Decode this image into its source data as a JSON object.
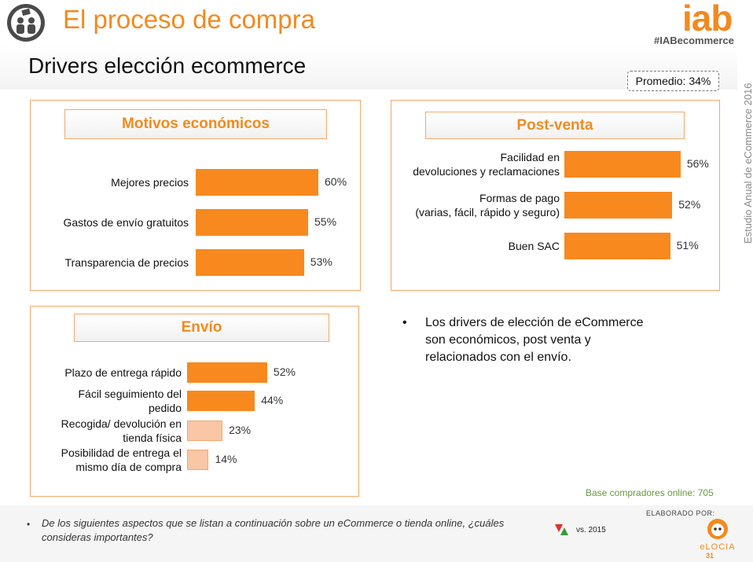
{
  "header": {
    "title": "El proceso de compra",
    "logo_text": "iab",
    "hashtag": "#IABecommerce",
    "brand_color": "#F28A1E"
  },
  "subtitle": "Drivers elección ecommerce",
  "promedio": "Promedio: 34%",
  "side_label": "Estudio Anual de eCommerce 2016",
  "chart_data": [
    {
      "type": "bar",
      "orientation": "horizontal",
      "title": "Motivos económicos",
      "categories": [
        "Mejores precios",
        "Gastos de envío gratuitos",
        "Transparencia de precios"
      ],
      "values": [
        60,
        55,
        53
      ],
      "value_labels": [
        "60%",
        "55%",
        "53%"
      ],
      "highlight": [
        true,
        true,
        true
      ],
      "color": "#F7891F"
    },
    {
      "type": "bar",
      "orientation": "horizontal",
      "title": "Post-venta",
      "categories": [
        "Facilidad en\ndevoluciones y reclamaciones",
        "Formas de pago\n(varias, fácil, rápido y seguro)",
        "Buen SAC"
      ],
      "values": [
        56,
        52,
        51
      ],
      "value_labels": [
        "56%",
        "52%",
        "51%"
      ],
      "highlight": [
        true,
        true,
        true
      ],
      "color": "#F7891F"
    },
    {
      "type": "bar",
      "orientation": "horizontal",
      "title": "Envío",
      "categories": [
        "Plazo de entrega rápido",
        "Fácil seguimiento del\npedido",
        "Recogida/ devolución en\ntienda física",
        "Posibilidad de entrega el\nmismo día de compra"
      ],
      "values": [
        52,
        44,
        23,
        14
      ],
      "value_labels": [
        "52%",
        "44%",
        "23%",
        "14%"
      ],
      "highlight": [
        true,
        true,
        false,
        false
      ],
      "color": "#F7891F",
      "light_color": "#F9C6A6"
    }
  ],
  "bullet": "Los drivers de elección de eCommerce son económicos, post venta y relacionados con el envío.",
  "base_note": "Base compradores online: 705",
  "question": "De los siguientes aspectos que se listan a continuación sobre un eCommerce o tienda online, ¿cuáles consideras importantes?",
  "vs_label": "vs. 2015",
  "elaborado": "ELABORADO POR:",
  "elocia": "eLOCIA",
  "page_number": "31"
}
